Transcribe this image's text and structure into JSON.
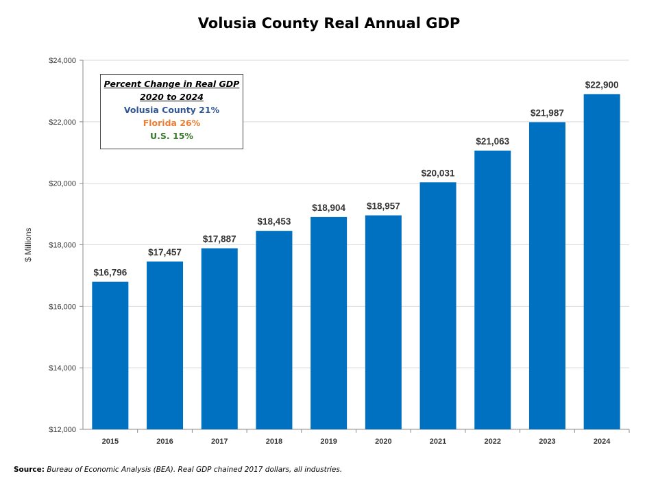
{
  "chart_data": {
    "type": "bar",
    "title": "Volusia County Real Annual GDP",
    "ylabel": "$ Millions",
    "xlabel": "",
    "ylim": [
      12000,
      24000
    ],
    "yticks": [
      12000,
      14000,
      16000,
      18000,
      20000,
      22000,
      24000
    ],
    "ytick_labels": [
      "$12,000",
      "$14,000",
      "$16,000",
      "$18,000",
      "$20,000",
      "$22,000",
      "$24,000"
    ],
    "grid": true,
    "categories": [
      "2015",
      "2016",
      "2017",
      "2018",
      "2019",
      "2020",
      "2021",
      "2022",
      "2023",
      "2024"
    ],
    "values": [
      16796,
      17457,
      17887,
      18453,
      18904,
      18957,
      20031,
      21063,
      21987,
      22900
    ],
    "data_labels": [
      "$16,796",
      "$17,457",
      "$17,887",
      "$18,453",
      "$18,904",
      "$18,957",
      "$20,031",
      "$21,063",
      "$21,987",
      "$22,900"
    ],
    "bar_color": "#0070C0"
  },
  "annotation": {
    "heading1": "Percent Change in Real GDP",
    "heading2": "2020 to 2024",
    "lines": [
      {
        "text": "Volusia County 21%",
        "color": "#2F5597"
      },
      {
        "text": "Florida 26%",
        "color": "#ED7D31"
      },
      {
        "text": "U.S. 15%",
        "color": "#38782B"
      }
    ]
  },
  "source": {
    "label": "Source:",
    "text": "Bureau of Economic Analysis (BEA). Real GDP chained 2017 dollars, all industries."
  }
}
